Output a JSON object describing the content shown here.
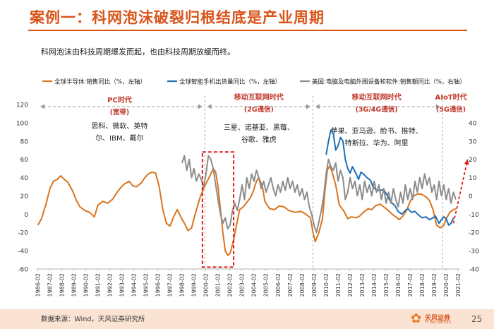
{
  "slide": {
    "title": "案例一：科网泡沫破裂归根结底是产业周期",
    "subtitle": "科网泡沫由科技周期爆发而起，也由科技周期放缓而终。",
    "source": "数据来源：Wind，天风证券研究所",
    "page_number": "25",
    "logo_text": "天风证券",
    "logo_sub": "TF SECURITIES"
  },
  "colors": {
    "semis": "#d9741e",
    "smartphone": "#1f6fb5",
    "computer": "#8c8c8c",
    "accent": "#d9541b",
    "era": "#c0392b",
    "box": "#e0201b"
  },
  "chart_data": {
    "type": "line",
    "title": "",
    "xlabel": "",
    "ylabel_left": "%",
    "ylabel_right": "%",
    "ylim_left": [
      -60,
      120
    ],
    "yticks_left": [
      -60,
      -40,
      -20,
      0,
      20,
      40,
      60,
      80,
      100,
      120
    ],
    "ylim_right": [
      -40,
      50
    ],
    "yticks_right": [
      -40,
      -30,
      -20,
      -10,
      0,
      10,
      20,
      30,
      40
    ],
    "x_start": 1986.0,
    "x_end": 2021.2,
    "xtick_labels": [
      "1986-02",
      "1987-02",
      "1988-02",
      "1989-02",
      "1990-02",
      "1991-02",
      "1992-02",
      "1993-02",
      "1994-02",
      "1995-02",
      "1996-02",
      "1997-02",
      "1998-02",
      "1999-02",
      "2000-02",
      "2001-02",
      "2002-02",
      "2003-02",
      "2004-02",
      "2005-02",
      "2006-02",
      "2007-02",
      "2008-02",
      "2009-02",
      "2010-02",
      "2011-02",
      "2012-02",
      "2013-02",
      "2014-02",
      "2015-02",
      "2016-02",
      "2017-02",
      "2018-02",
      "2019-02",
      "2020-02",
      "2021-02"
    ],
    "series": [
      {
        "name": "全球半导体:销售同比（%，左轴）",
        "axis": "left",
        "color": "#d9741e",
        "points": [
          [
            1986.1,
            -12
          ],
          [
            1986.4,
            -5
          ],
          [
            1986.8,
            12
          ],
          [
            1987.1,
            28
          ],
          [
            1987.4,
            36
          ],
          [
            1987.7,
            38
          ],
          [
            1988.0,
            42
          ],
          [
            1988.3,
            38
          ],
          [
            1988.6,
            35
          ],
          [
            1989.0,
            25
          ],
          [
            1989.3,
            15
          ],
          [
            1989.6,
            8
          ],
          [
            1990.0,
            4
          ],
          [
            1990.4,
            2
          ],
          [
            1990.8,
            -3
          ],
          [
            1991.1,
            10
          ],
          [
            1991.5,
            14
          ],
          [
            1991.9,
            12
          ],
          [
            1992.3,
            16
          ],
          [
            1992.7,
            24
          ],
          [
            1993.0,
            29
          ],
          [
            1993.3,
            33
          ],
          [
            1993.7,
            36
          ],
          [
            1994.0,
            31
          ],
          [
            1994.3,
            30
          ],
          [
            1994.7,
            34
          ],
          [
            1995.0,
            40
          ],
          [
            1995.3,
            44
          ],
          [
            1995.6,
            46
          ],
          [
            1995.9,
            45
          ],
          [
            1996.2,
            30
          ],
          [
            1996.5,
            5
          ],
          [
            1996.8,
            -10
          ],
          [
            1997.1,
            -13
          ],
          [
            1997.4,
            -3
          ],
          [
            1997.7,
            5
          ],
          [
            1998.0,
            -3
          ],
          [
            1998.3,
            -10
          ],
          [
            1998.6,
            -18
          ],
          [
            1998.9,
            -15
          ],
          [
            1999.2,
            0
          ],
          [
            1999.6,
            18
          ],
          [
            1999.9,
            28
          ],
          [
            2000.2,
            36
          ],
          [
            2000.5,
            44
          ],
          [
            2000.7,
            50
          ],
          [
            2000.9,
            46
          ],
          [
            2001.1,
            30
          ],
          [
            2001.3,
            5
          ],
          [
            2001.5,
            -20
          ],
          [
            2001.7,
            -40
          ],
          [
            2001.9,
            -45
          ],
          [
            2002.1,
            -43
          ],
          [
            2002.4,
            -28
          ],
          [
            2002.7,
            -8
          ],
          [
            2002.9,
            5
          ],
          [
            2003.2,
            8
          ],
          [
            2003.5,
            13
          ],
          [
            2003.8,
            18
          ],
          [
            2004.0,
            24
          ],
          [
            2004.3,
            36
          ],
          [
            2004.5,
            40
          ],
          [
            2004.8,
            30
          ],
          [
            2005.0,
            14
          ],
          [
            2005.4,
            6
          ],
          [
            2005.8,
            5
          ],
          [
            2006.2,
            9
          ],
          [
            2006.6,
            8
          ],
          [
            2007.0,
            4
          ],
          [
            2007.5,
            2
          ],
          [
            2008.0,
            3
          ],
          [
            2008.4,
            0
          ],
          [
            2008.8,
            -4
          ],
          [
            2009.0,
            -20
          ],
          [
            2009.2,
            -30
          ],
          [
            2009.5,
            -20
          ],
          [
            2009.8,
            -5
          ],
          [
            2010.0,
            25
          ],
          [
            2010.2,
            48
          ],
          [
            2010.4,
            53
          ],
          [
            2010.6,
            46
          ],
          [
            2010.9,
            32
          ],
          [
            2011.2,
            10
          ],
          [
            2011.6,
            3
          ],
          [
            2011.9,
            -5
          ],
          [
            2012.2,
            -3
          ],
          [
            2012.6,
            -4
          ],
          [
            2012.9,
            -2
          ],
          [
            2013.2,
            2
          ],
          [
            2013.6,
            6
          ],
          [
            2013.9,
            5
          ],
          [
            2014.2,
            9
          ],
          [
            2014.6,
            11
          ],
          [
            2014.9,
            8
          ],
          [
            2015.2,
            5
          ],
          [
            2015.6,
            0
          ],
          [
            2015.9,
            -3
          ],
          [
            2016.2,
            -6
          ],
          [
            2016.5,
            -2
          ],
          [
            2016.8,
            4
          ],
          [
            2017.1,
            14
          ],
          [
            2017.4,
            20
          ],
          [
            2017.7,
            22
          ],
          [
            2018.0,
            22
          ],
          [
            2018.4,
            19
          ],
          [
            2018.7,
            15
          ],
          [
            2019.0,
            5
          ],
          [
            2019.3,
            -12
          ],
          [
            2019.6,
            -15
          ],
          [
            2019.9,
            -12
          ],
          [
            2020.1,
            -5
          ],
          [
            2020.4,
            2
          ],
          [
            2020.7,
            5
          ],
          [
            2020.9,
            6
          ]
        ]
      },
      {
        "name": "全球智能手机出货量同比（%，左轴）",
        "axis": "left",
        "color": "#1f6fb5",
        "points": [
          [
            2010.1,
            65
          ],
          [
            2010.3,
            80
          ],
          [
            2010.5,
            92
          ],
          [
            2010.7,
            88
          ],
          [
            2010.9,
            70
          ],
          [
            2011.1,
            75
          ],
          [
            2011.3,
            84
          ],
          [
            2011.5,
            80
          ],
          [
            2011.7,
            60
          ],
          [
            2011.9,
            50
          ],
          [
            2012.1,
            45
          ],
          [
            2012.3,
            52
          ],
          [
            2012.6,
            44
          ],
          [
            2012.8,
            38
          ],
          [
            2013.0,
            46
          ],
          [
            2013.2,
            44
          ],
          [
            2013.5,
            40
          ],
          [
            2013.8,
            37
          ],
          [
            2014.0,
            30
          ],
          [
            2014.3,
            26
          ],
          [
            2014.6,
            26
          ],
          [
            2014.9,
            27
          ],
          [
            2015.2,
            20
          ],
          [
            2015.5,
            13
          ],
          [
            2015.8,
            10
          ],
          [
            2016.1,
            3
          ],
          [
            2016.4,
            0
          ],
          [
            2016.7,
            4
          ],
          [
            2016.9,
            6
          ],
          [
            2017.2,
            2
          ],
          [
            2017.5,
            3
          ],
          [
            2017.8,
            -1
          ],
          [
            2018.1,
            -4
          ],
          [
            2018.4,
            -3
          ],
          [
            2018.7,
            -6
          ],
          [
            2019.0,
            -4
          ],
          [
            2019.2,
            -2
          ],
          [
            2019.5,
            -10
          ],
          [
            2019.7,
            -6
          ],
          [
            2019.9,
            -3
          ],
          [
            2020.1,
            -5
          ],
          [
            2020.3,
            -12
          ],
          [
            2020.5,
            -10
          ],
          [
            2020.7,
            -4
          ]
        ]
      },
      {
        "name": "美国:电脑及电脑外围设备和软件:销售额同比（%，右轴）",
        "axis": "right",
        "color": "#8c8c8c",
        "points": [
          [
            1998.1,
            18
          ],
          [
            1998.3,
            22
          ],
          [
            1998.5,
            14
          ],
          [
            1998.7,
            20
          ],
          [
            1998.9,
            10
          ],
          [
            1999.1,
            15
          ],
          [
            1999.3,
            8
          ],
          [
            1999.5,
            12
          ],
          [
            1999.7,
            9
          ],
          [
            1999.9,
            5
          ],
          [
            2000.1,
            12
          ],
          [
            2000.3,
            22
          ],
          [
            2000.5,
            20
          ],
          [
            2000.7,
            15
          ],
          [
            2000.9,
            6
          ],
          [
            2001.1,
            -2
          ],
          [
            2001.3,
            -10
          ],
          [
            2001.5,
            -15
          ],
          [
            2001.7,
            -12
          ],
          [
            2001.9,
            -18
          ],
          [
            2002.1,
            -16
          ],
          [
            2002.3,
            -8
          ],
          [
            2002.5,
            -4
          ],
          [
            2002.7,
            -8
          ],
          [
            2002.9,
            -2
          ],
          [
            2003.1,
            6
          ],
          [
            2003.3,
            -2
          ],
          [
            2003.5,
            10
          ],
          [
            2003.7,
            4
          ],
          [
            2003.9,
            12
          ],
          [
            2004.1,
            8
          ],
          [
            2004.3,
            14
          ],
          [
            2004.5,
            10
          ],
          [
            2004.7,
            4
          ],
          [
            2004.9,
            8
          ],
          [
            2005.1,
            2
          ],
          [
            2005.3,
            6
          ],
          [
            2005.5,
            10
          ],
          [
            2005.7,
            4
          ],
          [
            2005.9,
            0
          ],
          [
            2006.1,
            6
          ],
          [
            2006.3,
            2
          ],
          [
            2006.5,
            8
          ],
          [
            2006.7,
            3
          ],
          [
            2006.9,
            10
          ],
          [
            2007.1,
            4
          ],
          [
            2007.3,
            8
          ],
          [
            2007.5,
            2
          ],
          [
            2007.7,
            6
          ],
          [
            2007.9,
            0
          ],
          [
            2008.1,
            4
          ],
          [
            2008.3,
            -2
          ],
          [
            2008.5,
            2
          ],
          [
            2008.7,
            -6
          ],
          [
            2008.9,
            -10
          ],
          [
            2009.1,
            -16
          ],
          [
            2009.3,
            -20
          ],
          [
            2009.5,
            -14
          ],
          [
            2009.7,
            -8
          ],
          [
            2009.9,
            0
          ],
          [
            2010.1,
            12
          ],
          [
            2010.3,
            20
          ],
          [
            2010.5,
            16
          ],
          [
            2010.7,
            14
          ],
          [
            2010.9,
            18
          ],
          [
            2011.1,
            8
          ],
          [
            2011.3,
            14
          ],
          [
            2011.5,
            10
          ],
          [
            2011.7,
            -2
          ],
          [
            2011.9,
            2
          ],
          [
            2012.1,
            10
          ],
          [
            2012.3,
            4
          ],
          [
            2012.5,
            8
          ],
          [
            2012.7,
            0
          ],
          [
            2012.9,
            6
          ],
          [
            2013.1,
            -2
          ],
          [
            2013.3,
            8
          ],
          [
            2013.5,
            2
          ],
          [
            2013.7,
            6
          ],
          [
            2013.9,
            0
          ],
          [
            2014.1,
            8
          ],
          [
            2014.3,
            2
          ],
          [
            2014.5,
            6
          ],
          [
            2014.7,
            -2
          ],
          [
            2014.9,
            4
          ],
          [
            2015.1,
            -4
          ],
          [
            2015.3,
            2
          ],
          [
            2015.5,
            -4
          ],
          [
            2015.7,
            4
          ],
          [
            2015.9,
            -2
          ],
          [
            2016.1,
            -6
          ],
          [
            2016.3,
            2
          ],
          [
            2016.5,
            -4
          ],
          [
            2016.7,
            6
          ],
          [
            2016.9,
            -2
          ],
          [
            2017.1,
            4
          ],
          [
            2017.3,
            -2
          ],
          [
            2017.5,
            8
          ],
          [
            2017.7,
            2
          ],
          [
            2017.9,
            10
          ],
          [
            2018.1,
            4
          ],
          [
            2018.3,
            12
          ],
          [
            2018.5,
            6
          ],
          [
            2018.7,
            10
          ],
          [
            2018.9,
            2
          ],
          [
            2019.1,
            6
          ],
          [
            2019.3,
            -2
          ],
          [
            2019.5,
            8
          ],
          [
            2019.7,
            0
          ],
          [
            2019.9,
            6
          ],
          [
            2020.1,
            -2
          ],
          [
            2020.3,
            4
          ],
          [
            2020.5,
            -4
          ],
          [
            2020.7,
            2
          ],
          [
            2020.9,
            -2
          ]
        ]
      }
    ],
    "eras": [
      {
        "name": "PC时代",
        "tech": "(宽带)",
        "start": 1986.0,
        "end": 2000.0,
        "companies": [
          "思科、微软、英特",
          "尔、IBM、戴尔"
        ]
      },
      {
        "name": "移动互联网时代",
        "tech": "(2G通信)",
        "start": 2000.0,
        "end": 2009.0,
        "companies": [
          "三星、诺基亚、黑莓、",
          "谷歌、雅虎"
        ]
      },
      {
        "name": "移动互联网时代",
        "tech": "(3G/4G通信)",
        "start": 2009.0,
        "end": 2019.8,
        "companies": [
          "苹果、亚马逊、脸书、推特、",
          "特斯拉、华为、阿里"
        ]
      },
      {
        "name": "AIoT时代",
        "tech": "(5G通信)",
        "start": 2019.8,
        "end": 2021.2,
        "companies": []
      }
    ],
    "bubble_box": {
      "start": 1999.8,
      "end": 2002.4,
      "ymin": -58,
      "ymax": 68
    },
    "forecast_arrow": {
      "from": [
        2020.7,
        -15
      ],
      "to": [
        2021.3,
        20
      ]
    }
  }
}
